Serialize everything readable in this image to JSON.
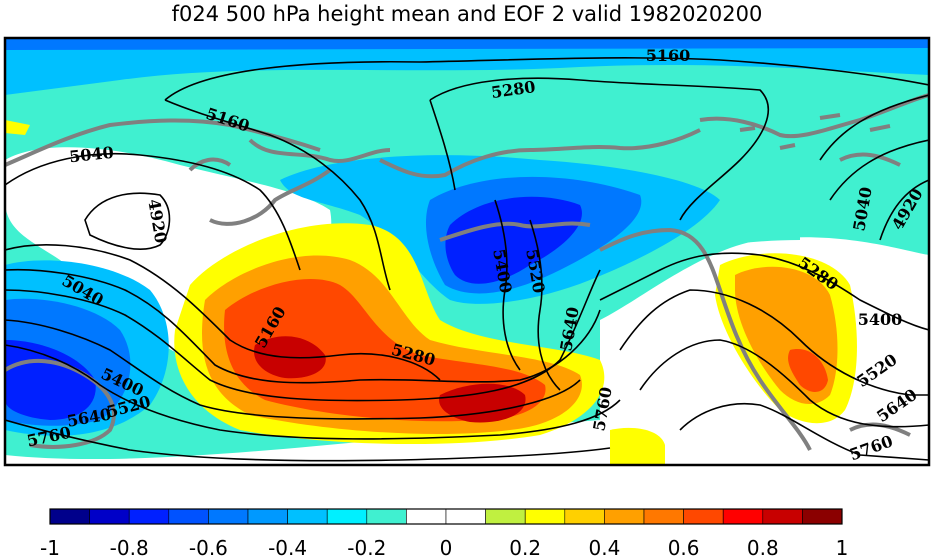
{
  "title": "f024 500 hPa height mean and EOF 2 valid 1982020200",
  "contour_labels": [
    "5160",
    "5280",
    "5040",
    "4920",
    "5040",
    "5160",
    "5280",
    "5400",
    "5520",
    "5640",
    "5760",
    "5400",
    "5520",
    "5640",
    "5760",
    "5160",
    "5040",
    "4920",
    "5280",
    "5400",
    "5520",
    "5640",
    "5760"
  ],
  "colorbar": {
    "colors": [
      "#00008b",
      "#0000c8",
      "#0020ff",
      "#0052ff",
      "#0078ff",
      "#0099ff",
      "#00c0ff",
      "#00f0ff",
      "#40f0d0",
      "#ffffff",
      "#ffffff",
      "#c0f040",
      "#ffff00",
      "#ffd000",
      "#ffa000",
      "#ff7800",
      "#ff4800",
      "#ff0000",
      "#c80000",
      "#8b0000"
    ],
    "labels": [
      "-1",
      "-0.8",
      "-0.6",
      "-0.4",
      "-0.2",
      "0",
      "0.2",
      "0.4",
      "0.6",
      "0.8",
      "1"
    ]
  },
  "map_colors": {
    "cyan": "#40f0d0",
    "light_blue": "#00c0ff",
    "blue": "#0078ff",
    "dark_blue": "#0020ff",
    "yellow": "#ffff00",
    "orange": "#ffa000",
    "red_orange": "#ff4800",
    "dark_red": "#c80000",
    "land": "#808080"
  }
}
